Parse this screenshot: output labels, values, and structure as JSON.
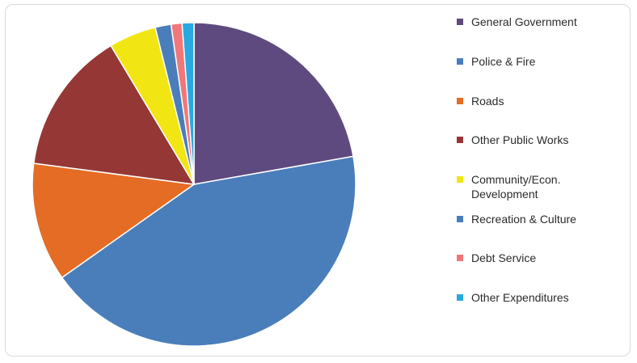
{
  "chart_data": {
    "type": "pie",
    "title": "",
    "legend_position": "right",
    "series": [
      {
        "name": "General Government",
        "value": 22.5,
        "color": "#5e4a7e"
      },
      {
        "name": "Police & Fire",
        "value": 43.5,
        "color": "#4a7ebb"
      },
      {
        "name": "Roads",
        "value": 12.0,
        "color": "#e46c24"
      },
      {
        "name": "Other Public Works",
        "value": 14.5,
        "color": "#953735"
      },
      {
        "name": "Community/Econ.\nDevelopment",
        "value": 4.8,
        "color": "#f1e614"
      },
      {
        "name": "Recreation & Culture",
        "value": 1.6,
        "color": "#4a7ebb"
      },
      {
        "name": "Debt Service",
        "value": 1.1,
        "color": "#f2777a"
      },
      {
        "name": "Other Expenditures",
        "value": 1.2,
        "color": "#29a9e0"
      }
    ]
  }
}
